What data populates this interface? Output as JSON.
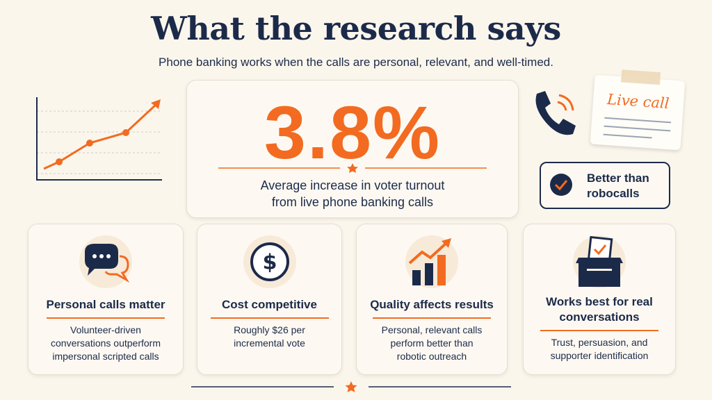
{
  "header": {
    "title": "What the research says",
    "subtitle": "Phone banking works when the calls are personal, relevant, and well-timed."
  },
  "stat": {
    "value": "3.8%",
    "caption": [
      "Average increase in voter turnout",
      "from live phone banking calls"
    ]
  },
  "note": "Live call",
  "badge": [
    "Better than",
    "robocalls"
  ],
  "cards": [
    {
      "title": [
        "Personal calls matter"
      ],
      "text": [
        "Volunteer-driven",
        "conversations outperform",
        "impersonal scripted calls"
      ]
    },
    {
      "title": [
        "Cost competitive"
      ],
      "text": [
        "Roughly $26 per",
        "incremental vote"
      ]
    },
    {
      "title": [
        "Quality affects results"
      ],
      "text": [
        "Personal, relevant calls",
        "perform better than",
        "robotic outreach"
      ]
    },
    {
      "title": [
        "Works best for real",
        "conversations"
      ],
      "text": [
        "Trust, persuasion, and",
        "supporter identification"
      ]
    }
  ]
}
